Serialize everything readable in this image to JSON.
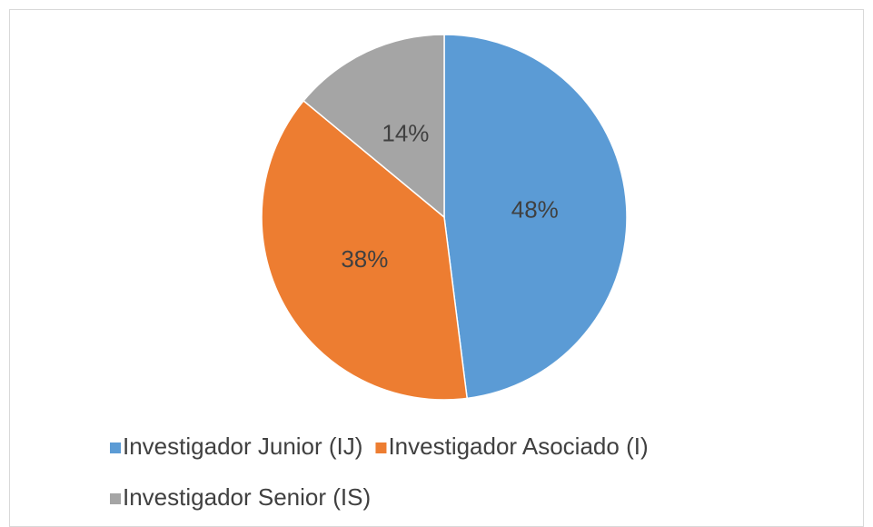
{
  "chart_data": {
    "type": "pie",
    "categories": [
      "Investigador Junior (IJ)",
      "Investigador Asociado (I)",
      "Investigador Senior (IS)"
    ],
    "values": [
      48,
      38,
      14
    ],
    "value_labels": [
      "48%",
      "38%",
      "14%"
    ],
    "colors": [
      "#5b9bd5",
      "#ed7d31",
      "#a5a5a5"
    ],
    "legend": "bottom"
  }
}
